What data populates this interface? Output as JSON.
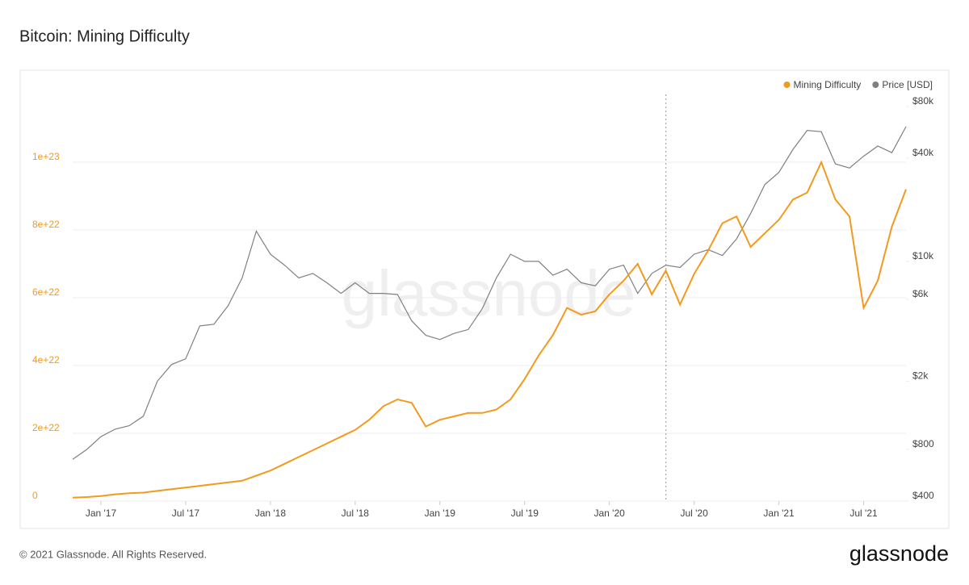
{
  "chart_data": {
    "type": "line",
    "title": "Bitcoin: Mining Difficulty",
    "watermark": "glassnode",
    "x": [
      "2016-11",
      "2016-12",
      "2017-01",
      "2017-02",
      "2017-03",
      "2017-04",
      "2017-05",
      "2017-06",
      "2017-07",
      "2017-08",
      "2017-09",
      "2017-10",
      "2017-11",
      "2017-12",
      "2018-01",
      "2018-02",
      "2018-03",
      "2018-04",
      "2018-05",
      "2018-06",
      "2018-07",
      "2018-08",
      "2018-09",
      "2018-10",
      "2018-11",
      "2018-12",
      "2019-01",
      "2019-02",
      "2019-03",
      "2019-04",
      "2019-05",
      "2019-06",
      "2019-07",
      "2019-08",
      "2019-09",
      "2019-10",
      "2019-11",
      "2019-12",
      "2020-01",
      "2020-02",
      "2020-03",
      "2020-04",
      "2020-05",
      "2020-06",
      "2020-07",
      "2020-08",
      "2020-09",
      "2020-10",
      "2020-11",
      "2020-12",
      "2021-01",
      "2021-02",
      "2021-03",
      "2021-04",
      "2021-05",
      "2021-06",
      "2021-07",
      "2021-08",
      "2021-09",
      "2021-10"
    ],
    "xlim": [
      "2016-11",
      "2021-10"
    ],
    "xticks": [
      {
        "value": "2017-01",
        "label": "Jan '17"
      },
      {
        "value": "2017-07",
        "label": "Jul '17"
      },
      {
        "value": "2018-01",
        "label": "Jan '18"
      },
      {
        "value": "2018-07",
        "label": "Jul '18"
      },
      {
        "value": "2019-01",
        "label": "Jan '19"
      },
      {
        "value": "2019-07",
        "label": "Jul '19"
      },
      {
        "value": "2020-01",
        "label": "Jan '20"
      },
      {
        "value": "2020-07",
        "label": "Jul '20"
      },
      {
        "value": "2021-01",
        "label": "Jan '21"
      },
      {
        "value": "2021-07",
        "label": "Jul '21"
      }
    ],
    "vertical_line": "2020-05",
    "ylim": [
      0,
      1.2e+23
    ],
    "yticks": [
      0,
      {
        "value": 2e+22,
        "label": "2e+22"
      },
      {
        "value": 4e+22,
        "label": "4e+22"
      },
      {
        "value": 6e+22,
        "label": "6e+22"
      },
      {
        "value": 8e+22,
        "label": "8e+22"
      },
      {
        "value": 1e+23,
        "label": "1e+23"
      }
    ],
    "y2lim": [
      400,
      94000
    ],
    "y2scale": "log",
    "y2ticks": [
      {
        "value": 400,
        "label": "$400"
      },
      {
        "value": 800,
        "label": "$800"
      },
      {
        "value": 2000,
        "label": "$2k"
      },
      {
        "value": 6000,
        "label": "$6k"
      },
      {
        "value": 10000,
        "label": "$10k"
      },
      {
        "value": 40000,
        "label": "$40k"
      },
      {
        "value": 80000,
        "label": "$80k"
      }
    ],
    "grid": true,
    "legend": "top-right",
    "series": [
      {
        "name": "Mining Difficulty",
        "color": "#f29a1e",
        "values": [
          1e+21,
          1.2e+21,
          1.5e+21,
          2e+21,
          2.3e+21,
          2.5e+21,
          3e+21,
          3.5e+21,
          4e+21,
          4.5e+21,
          5e+21,
          5.5e+21,
          6e+21,
          7.5e+21,
          9e+21,
          1.1e+22,
          1.3e+22,
          1.5e+22,
          1.7e+22,
          1.9e+22,
          2.1e+22,
          2.4e+22,
          2.8e+22,
          3e+22,
          2.9e+22,
          2.2e+22,
          2.4e+22,
          2.5e+22,
          2.6e+22,
          2.6e+22,
          2.7e+22,
          3e+22,
          3.6e+22,
          4.3e+22,
          4.9e+22,
          5.7e+22,
          5.5e+22,
          5.6e+22,
          6.1e+22,
          6.5e+22,
          7e+22,
          6.1e+22,
          6.8e+22,
          5.8e+22,
          6.7e+22,
          7.4e+22,
          8.2e+22,
          8.4e+22,
          7.5e+22,
          7.9e+22,
          8.3e+22,
          8.9e+22,
          9.1e+22,
          1e+23,
          8.9e+22,
          8.4e+22,
          5.7e+22,
          6.5e+22,
          8.1e+22,
          9.2e+22
        ]
      },
      {
        "name": "Price [USD]",
        "color": "#808080",
        "axis": "y2",
        "values": [
          700,
          800,
          950,
          1050,
          1100,
          1250,
          2000,
          2500,
          2700,
          4200,
          4300,
          5500,
          8000,
          15000,
          11000,
          9500,
          8000,
          8500,
          7500,
          6500,
          7500,
          6500,
          6500,
          6400,
          4500,
          3700,
          3500,
          3800,
          4000,
          5300,
          8000,
          11000,
          10000,
          10000,
          8300,
          9000,
          7500,
          7200,
          9000,
          9500,
          6500,
          8500,
          9500,
          9200,
          11000,
          11700,
          10800,
          13500,
          19000,
          28000,
          33000,
          45000,
          58000,
          57000,
          37000,
          35000,
          41000,
          47000,
          43000,
          61000
        ]
      }
    ]
  },
  "footer": {
    "copyright": "© 2021 Glassnode. All Rights Reserved.",
    "brand": "glassnode"
  }
}
